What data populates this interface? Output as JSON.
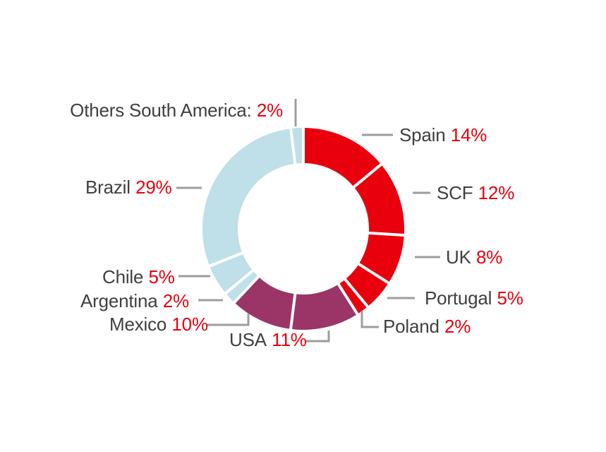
{
  "chart_data": {
    "type": "pie",
    "variant": "donut",
    "title": "",
    "unit": "%",
    "start_at": "12-oclock",
    "direction": "clockwise",
    "donut_hole_ratio": 0.65,
    "background_color": "#ffffff",
    "label_text_color": "#404040",
    "label_value_color": "#e8000d",
    "leader_line_color": "#9d9d9d",
    "divider_color": "#ffffff",
    "group_colors": {
      "europe_red": "#e8000d",
      "north_america_purple": "#9b3567",
      "south_america_blue": "#bfdfe9"
    },
    "slices": [
      {
        "id": "spain",
        "label": "Spain",
        "value": 14,
        "value_text": "14%",
        "color": "#e8000d"
      },
      {
        "id": "scf",
        "label": "SCF",
        "value": 12,
        "value_text": "12%",
        "color": "#e8000d"
      },
      {
        "id": "uk",
        "label": "UK",
        "value": 8,
        "value_text": "8%",
        "color": "#e8000d"
      },
      {
        "id": "portugal",
        "label": "Portugal",
        "value": 5,
        "value_text": "5%",
        "color": "#e8000d"
      },
      {
        "id": "poland",
        "label": "Poland",
        "value": 2,
        "value_text": "2%",
        "color": "#e8000d"
      },
      {
        "id": "usa",
        "label": "USA",
        "value": 11,
        "value_text": "11%",
        "color": "#9b3567"
      },
      {
        "id": "mexico",
        "label": "Mexico",
        "value": 10,
        "value_text": "10%",
        "color": "#9b3567"
      },
      {
        "id": "argentina",
        "label": "Argentina",
        "value": 2,
        "value_text": "2%",
        "color": "#bfdfe9"
      },
      {
        "id": "chile",
        "label": "Chile",
        "value": 5,
        "value_text": "5%",
        "color": "#bfdfe9"
      },
      {
        "id": "brazil",
        "label": "Brazil",
        "value": 29,
        "value_text": "29%",
        "color": "#bfdfe9"
      },
      {
        "id": "others",
        "label": "Others South America:",
        "value": 2,
        "value_text": "2%",
        "color": "#bfdfe9"
      }
    ]
  }
}
